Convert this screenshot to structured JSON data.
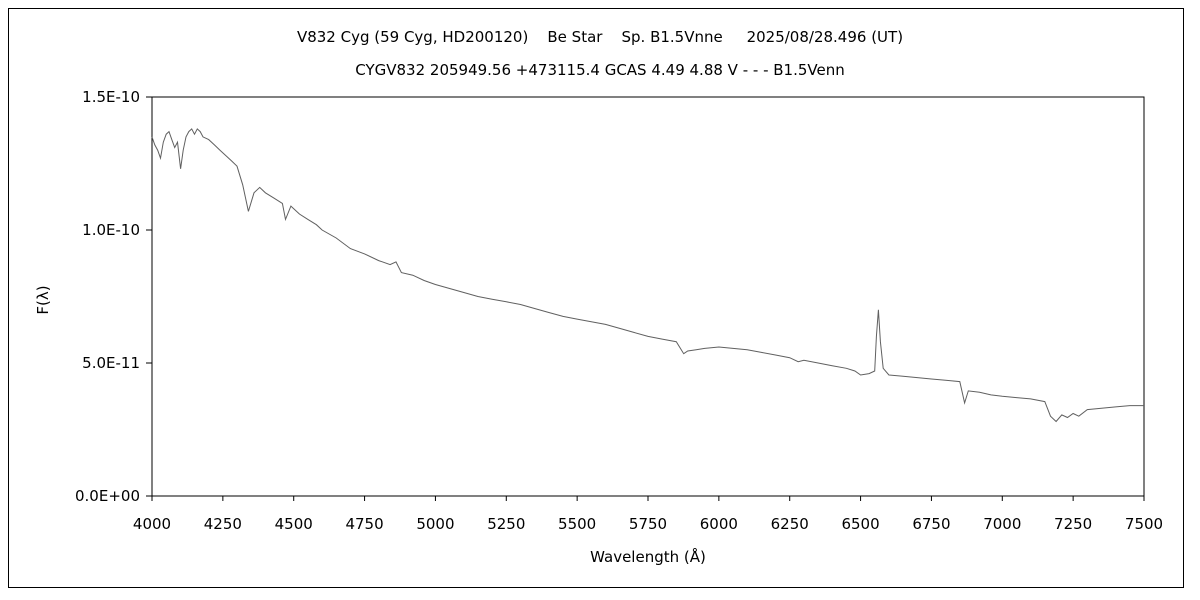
{
  "chart_data": {
    "type": "line",
    "title": "V832 Cyg (59 Cyg, HD200120)    Be Star    Sp. B1.5Vnne     2025/08/28.496 (UT)",
    "subtitle": "CYGV832 205949.56 +473115.4 GCAS 4.49 4.88 V - - - B1.5Venn",
    "xlabel": "Wavelength (Å)",
    "ylabel": "F(λ)",
    "xlim": [
      4000,
      7500
    ],
    "ylim": [
      0,
      1.5e-10
    ],
    "x_ticks": [
      4000,
      4250,
      4500,
      4750,
      5000,
      5250,
      5500,
      5750,
      6000,
      6250,
      6500,
      6750,
      7000,
      7250,
      7500
    ],
    "y_ticks": [
      {
        "value": 0,
        "label": "0.0E+00"
      },
      {
        "value": 5e-11,
        "label": "5.0E-11"
      },
      {
        "value": 1e-10,
        "label": "1.0E-10"
      },
      {
        "value": 1.5e-10,
        "label": "1.5E-10"
      }
    ],
    "grid": false,
    "series": [
      {
        "color": "#606060",
        "points": [
          [
            4000,
            1.35e-10
          ],
          [
            4010,
            1.32e-10
          ],
          [
            4020,
            1.3e-10
          ],
          [
            4030,
            1.27e-10
          ],
          [
            4040,
            1.33e-10
          ],
          [
            4050,
            1.36e-10
          ],
          [
            4060,
            1.37e-10
          ],
          [
            4070,
            1.34e-10
          ],
          [
            4080,
            1.31e-10
          ],
          [
            4090,
            1.33e-10
          ],
          [
            4101,
            1.23e-10
          ],
          [
            4110,
            1.3e-10
          ],
          [
            4120,
            1.35e-10
          ],
          [
            4130,
            1.37e-10
          ],
          [
            4140,
            1.38e-10
          ],
          [
            4150,
            1.36e-10
          ],
          [
            4160,
            1.38e-10
          ],
          [
            4170,
            1.37e-10
          ],
          [
            4180,
            1.35e-10
          ],
          [
            4200,
            1.34e-10
          ],
          [
            4220,
            1.32e-10
          ],
          [
            4240,
            1.3e-10
          ],
          [
            4260,
            1.28e-10
          ],
          [
            4280,
            1.26e-10
          ],
          [
            4300,
            1.24e-10
          ],
          [
            4320,
            1.17e-10
          ],
          [
            4340,
            1.07e-10
          ],
          [
            4360,
            1.14e-10
          ],
          [
            4380,
            1.16e-10
          ],
          [
            4400,
            1.14e-10
          ],
          [
            4430,
            1.12e-10
          ],
          [
            4460,
            1.1e-10
          ],
          [
            4471,
            1.04e-10
          ],
          [
            4490,
            1.09e-10
          ],
          [
            4520,
            1.06e-10
          ],
          [
            4550,
            1.04e-10
          ],
          [
            4580,
            1.02e-10
          ],
          [
            4600,
            1e-10
          ],
          [
            4650,
            9.7e-11
          ],
          [
            4700,
            9.3e-11
          ],
          [
            4750,
            9.1e-11
          ],
          [
            4800,
            8.85e-11
          ],
          [
            4840,
            8.7e-11
          ],
          [
            4861,
            8.8e-11
          ],
          [
            4880,
            8.4e-11
          ],
          [
            4920,
            8.3e-11
          ],
          [
            4960,
            8.1e-11
          ],
          [
            5000,
            7.95e-11
          ],
          [
            5050,
            7.8e-11
          ],
          [
            5100,
            7.65e-11
          ],
          [
            5150,
            7.5e-11
          ],
          [
            5200,
            7.4e-11
          ],
          [
            5250,
            7.3e-11
          ],
          [
            5300,
            7.2e-11
          ],
          [
            5350,
            7.05e-11
          ],
          [
            5400,
            6.9e-11
          ],
          [
            5450,
            6.75e-11
          ],
          [
            5500,
            6.65e-11
          ],
          [
            5550,
            6.55e-11
          ],
          [
            5600,
            6.45e-11
          ],
          [
            5650,
            6.3e-11
          ],
          [
            5700,
            6.15e-11
          ],
          [
            5750,
            6e-11
          ],
          [
            5800,
            5.9e-11
          ],
          [
            5850,
            5.8e-11
          ],
          [
            5876,
            5.35e-11
          ],
          [
            5890,
            5.45e-11
          ],
          [
            5920,
            5.5e-11
          ],
          [
            5950,
            5.55e-11
          ],
          [
            6000,
            5.6e-11
          ],
          [
            6050,
            5.55e-11
          ],
          [
            6100,
            5.5e-11
          ],
          [
            6150,
            5.4e-11
          ],
          [
            6200,
            5.3e-11
          ],
          [
            6250,
            5.2e-11
          ],
          [
            6280,
            5.05e-11
          ],
          [
            6300,
            5.1e-11
          ],
          [
            6350,
            5e-11
          ],
          [
            6400,
            4.9e-11
          ],
          [
            6450,
            4.8e-11
          ],
          [
            6480,
            4.7e-11
          ],
          [
            6500,
            4.55e-11
          ],
          [
            6530,
            4.6e-11
          ],
          [
            6550,
            4.7e-11
          ],
          [
            6556,
            6e-11
          ],
          [
            6563,
            7e-11
          ],
          [
            6570,
            5.8e-11
          ],
          [
            6580,
            4.8e-11
          ],
          [
            6600,
            4.55e-11
          ],
          [
            6650,
            4.5e-11
          ],
          [
            6700,
            4.45e-11
          ],
          [
            6750,
            4.4e-11
          ],
          [
            6800,
            4.35e-11
          ],
          [
            6850,
            4.3e-11
          ],
          [
            6867,
            3.5e-11
          ],
          [
            6880,
            3.95e-11
          ],
          [
            6920,
            3.9e-11
          ],
          [
            6960,
            3.8e-11
          ],
          [
            7000,
            3.75e-11
          ],
          [
            7050,
            3.7e-11
          ],
          [
            7100,
            3.65e-11
          ],
          [
            7150,
            3.55e-11
          ],
          [
            7170,
            3e-11
          ],
          [
            7190,
            2.8e-11
          ],
          [
            7210,
            3.05e-11
          ],
          [
            7230,
            2.95e-11
          ],
          [
            7250,
            3.1e-11
          ],
          [
            7270,
            3e-11
          ],
          [
            7300,
            3.25e-11
          ],
          [
            7350,
            3.3e-11
          ],
          [
            7400,
            3.35e-11
          ],
          [
            7450,
            3.4e-11
          ],
          [
            7500,
            3.4e-11
          ]
        ]
      }
    ]
  }
}
